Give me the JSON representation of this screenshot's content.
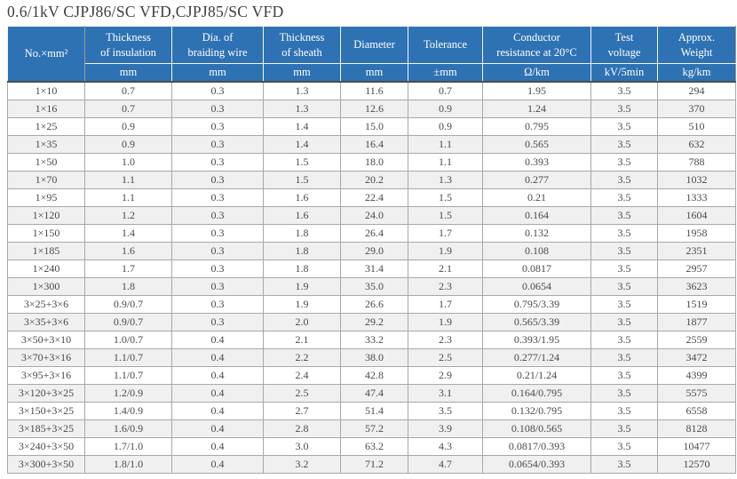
{
  "page": {
    "title": "0.6/1kV CJPJ86/SC VFD,CJPJ85/SC VFD"
  },
  "colors": {
    "header_bg": "#2e72b4",
    "header_text": "#ffffff",
    "row_alt_bg": "#f0f0f0",
    "grid_line": "#a8a8a8",
    "header_bottom_rule": "#4e4e4e",
    "body_text": "#4a4a4a"
  },
  "table": {
    "columns": [
      {
        "label": "No.×mm²",
        "unit": ""
      },
      {
        "label": "Thickness\nof insulation",
        "unit": "mm"
      },
      {
        "label": "Dia. of\nbraiding wire",
        "unit": "mm"
      },
      {
        "label": "Thickness\nof sheath",
        "unit": "mm"
      },
      {
        "label": "Diameter",
        "unit": "mm"
      },
      {
        "label": "Tolerance",
        "unit": "±mm"
      },
      {
        "label": "Conductor\nresistance at 20°C",
        "unit": "Ω/km"
      },
      {
        "label": "Test\nvoltage",
        "unit": "kV/5min"
      },
      {
        "label": "Approx.\nWeight",
        "unit": "kg/km"
      }
    ],
    "rows": [
      [
        "1×10",
        "0.7",
        "0.3",
        "1.3",
        "11.6",
        "0.7",
        "1.95",
        "3.5",
        "294"
      ],
      [
        "1×16",
        "0.7",
        "0.3",
        "1.3",
        "12.6",
        "0.9",
        "1.24",
        "3.5",
        "370"
      ],
      [
        "1×25",
        "0.9",
        "0.3",
        "1.4",
        "15.0",
        "0.9",
        "0.795",
        "3.5",
        "510"
      ],
      [
        "1×35",
        "0.9",
        "0.3",
        "1.4",
        "16.4",
        "1.1",
        "0.565",
        "3.5",
        "632"
      ],
      [
        "1×50",
        "1.0",
        "0.3",
        "1.5",
        "18.0",
        "1.1",
        "0.393",
        "3.5",
        "788"
      ],
      [
        "1×70",
        "1.1",
        "0.3",
        "1.5",
        "20.2",
        "1.3",
        "0.277",
        "3.5",
        "1032"
      ],
      [
        "1×95",
        "1.1",
        "0.3",
        "1.6",
        "22.4",
        "1.5",
        "0.21",
        "3.5",
        "1333"
      ],
      [
        "1×120",
        "1.2",
        "0.3",
        "1.6",
        "24.0",
        "1.5",
        "0.164",
        "3.5",
        "1604"
      ],
      [
        "1×150",
        "1.4",
        "0.3",
        "1.8",
        "26.4",
        "1.7",
        "0.132",
        "3.5",
        "1958"
      ],
      [
        "1×185",
        "1.6",
        "0.3",
        "1.8",
        "29.0",
        "1.9",
        "0.108",
        "3.5",
        "2351"
      ],
      [
        "1×240",
        "1.7",
        "0.3",
        "1.8",
        "31.4",
        "2.1",
        "0.0817",
        "3.5",
        "2957"
      ],
      [
        "1×300",
        "1.8",
        "0.3",
        "1.9",
        "35.0",
        "2.3",
        "0.0654",
        "3.5",
        "3623"
      ],
      [
        "3×25+3×6",
        "0.9/0.7",
        "0.3",
        "1.9",
        "26.6",
        "1.7",
        "0.795/3.39",
        "3.5",
        "1519"
      ],
      [
        "3×35+3×6",
        "0.9/0.7",
        "0.3",
        "2.0",
        "29.2",
        "1.9",
        "0.565/3.39",
        "3.5",
        "1877"
      ],
      [
        "3×50+3×10",
        "1.0/0.7",
        "0.4",
        "2.1",
        "33.2",
        "2.3",
        "0.393/1.95",
        "3.5",
        "2559"
      ],
      [
        "3×70+3×16",
        "1.1/0.7",
        "0.4",
        "2.2",
        "38.0",
        "2.5",
        "0.277/1.24",
        "3.5",
        "3472"
      ],
      [
        "3×95+3×16",
        "1.1/0.7",
        "0.4",
        "2.4",
        "42.8",
        "2.9",
        "0.21/1.24",
        "3.5",
        "4399"
      ],
      [
        "3×120+3×25",
        "1.2/0.9",
        "0.4",
        "2.5",
        "47.4",
        "3.1",
        "0.164/0.795",
        "3.5",
        "5575"
      ],
      [
        "3×150+3×25",
        "1.4/0.9",
        "0.4",
        "2.7",
        "51.4",
        "3.5",
        "0.132/0.795",
        "3.5",
        "6558"
      ],
      [
        "3×185+3×25",
        "1.6/0.9",
        "0.4",
        "2.8",
        "57.2",
        "3.9",
        "0.108/0.565",
        "3.5",
        "8128"
      ],
      [
        "3×240+3×50",
        "1.7/1.0",
        "0.4",
        "3.0",
        "63.2",
        "4.3",
        "0.0817/0.393",
        "3.5",
        "10477"
      ],
      [
        "3×300+3×50",
        "1.8/1.0",
        "0.4",
        "3.2",
        "71.2",
        "4.7",
        "0.0654/0.393",
        "3.5",
        "12570"
      ]
    ]
  }
}
